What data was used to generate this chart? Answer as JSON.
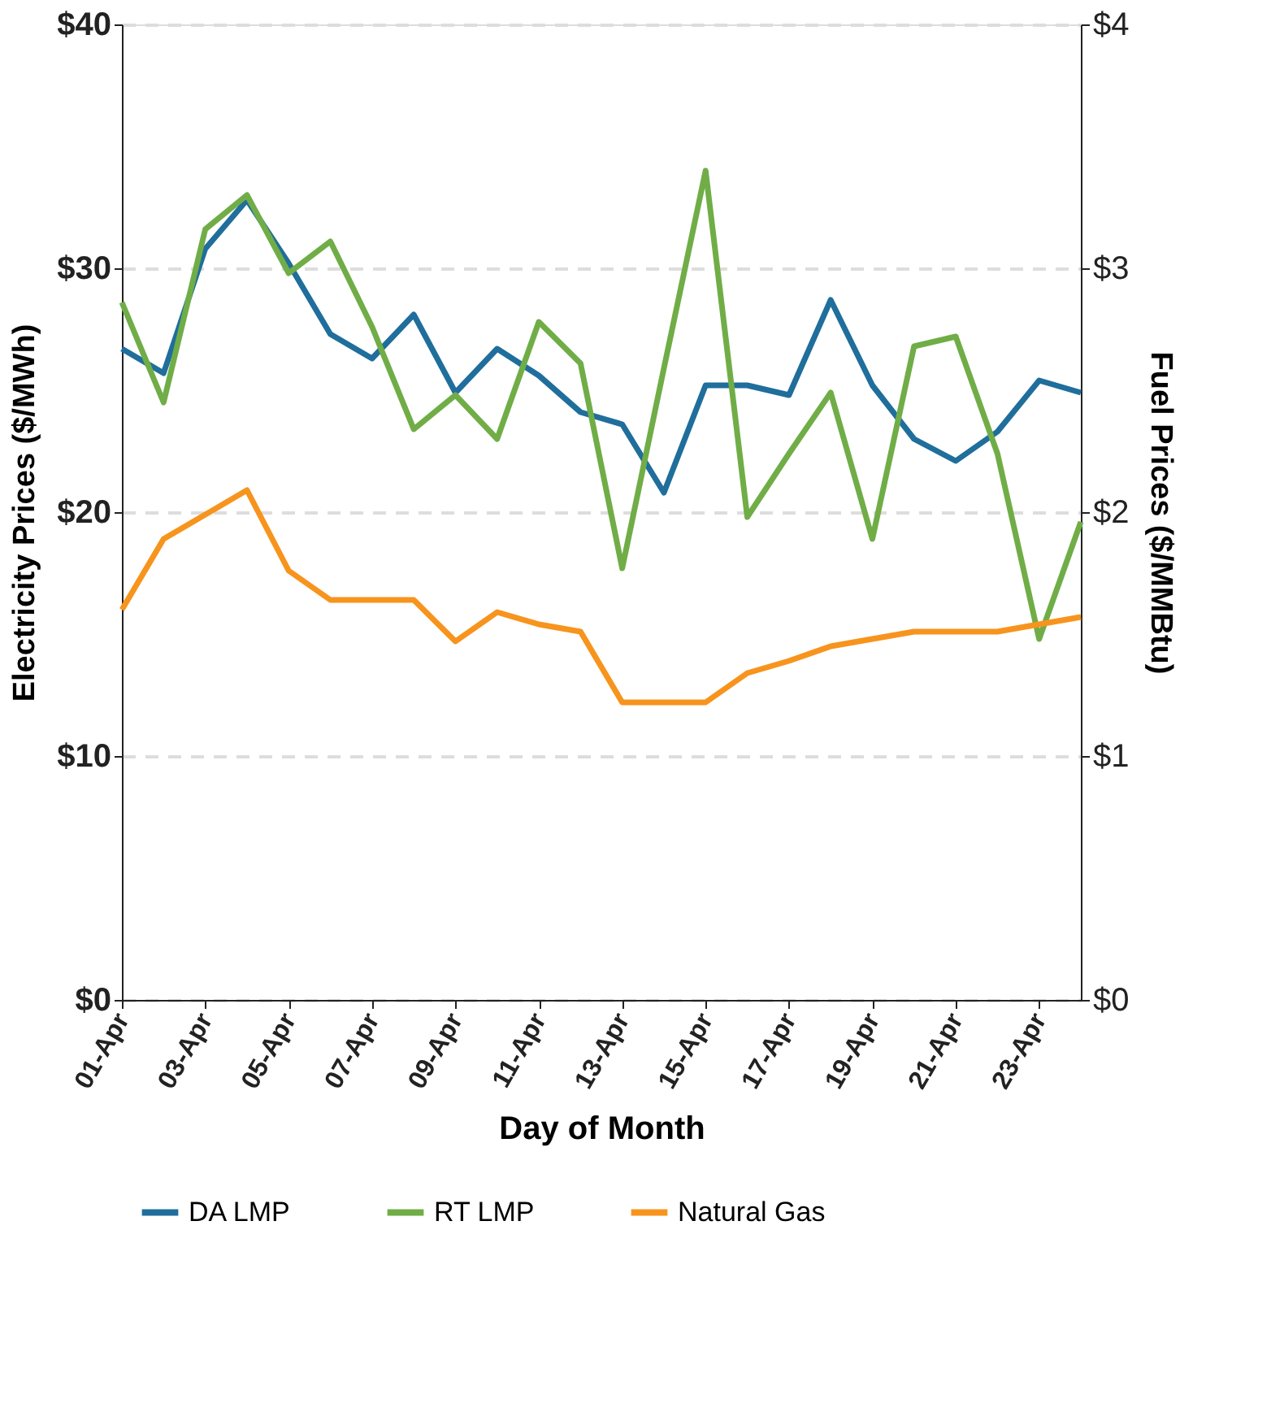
{
  "chart_data": {
    "type": "line",
    "xlabel": "Day of Month",
    "ylabel": "Electricity Prices ($/MWh)",
    "y2label": "Fuel Prices ($/MMBtu)",
    "categories": [
      "01-Apr",
      null,
      "03-Apr",
      null,
      "05-Apr",
      null,
      "07-Apr",
      null,
      "09-Apr",
      null,
      "11-Apr",
      null,
      "13-Apr",
      null,
      "15-Apr",
      null,
      "17-Apr",
      null,
      "19-Apr",
      null,
      "21-Apr",
      null,
      "23-Apr",
      null
    ],
    "series": [
      {
        "name": "DA LMP",
        "color": "#1f6e9c",
        "values": [
          26.7,
          25.7,
          30.8,
          32.8,
          30.2,
          27.3,
          26.3,
          28.1,
          24.9,
          26.7,
          25.6,
          24.1,
          23.6,
          20.8,
          25.2,
          25.2,
          24.8,
          28.7,
          25.2,
          23.0,
          22.1,
          23.3,
          25.4,
          24.9
        ]
      },
      {
        "name": "RT LMP",
        "color": "#70ad47",
        "values": [
          28.6,
          24.5,
          31.6,
          33.0,
          29.8,
          31.1,
          27.6,
          23.4,
          24.8,
          23.0,
          27.8,
          26.1,
          17.7,
          25.9,
          34.0,
          19.8,
          22.4,
          24.9,
          18.9,
          26.8,
          27.2,
          22.4,
          14.8,
          19.6
        ]
      },
      {
        "name": "Natural Gas",
        "color": "#f7941d",
        "axis": "y2",
        "values": [
          1.6,
          1.89,
          1.99,
          2.09,
          1.76,
          1.64,
          1.64,
          1.64,
          1.47,
          1.59,
          1.54,
          1.51,
          1.22,
          1.22,
          1.22,
          1.34,
          1.39,
          1.45,
          1.48,
          1.51,
          1.51,
          1.51,
          1.54,
          1.57
        ]
      }
    ],
    "ylim": [
      0,
      40
    ],
    "yticks": [
      {
        "value": 0,
        "label": "$0"
      },
      {
        "value": 10,
        "label": "$10"
      },
      {
        "value": 20,
        "label": "$20"
      },
      {
        "value": 30,
        "label": "$30"
      },
      {
        "value": 40,
        "label": "$40"
      }
    ],
    "y2lim": [
      0,
      4
    ],
    "y2ticks": [
      {
        "value": 0,
        "label": "$0"
      },
      {
        "value": 1,
        "label": "$1"
      },
      {
        "value": 2,
        "label": "$2"
      },
      {
        "value": 3,
        "label": "$3"
      },
      {
        "value": 4,
        "label": "$4"
      }
    ],
    "grid": "y",
    "legend": "bottom",
    "marker": "none",
    "line_style": "solid"
  }
}
